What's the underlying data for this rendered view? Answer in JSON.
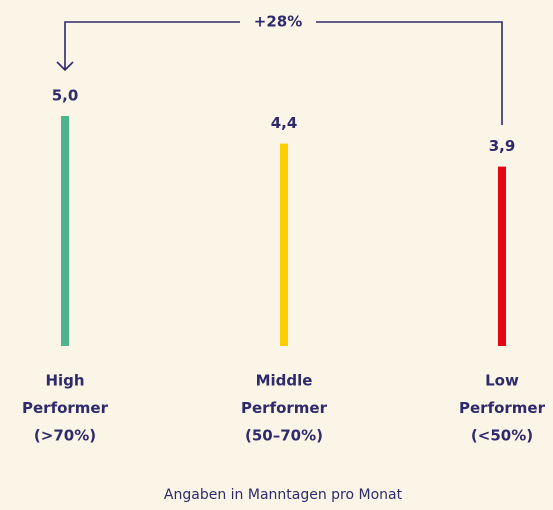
{
  "chart_data": {
    "type": "bar",
    "categories": [
      [
        "High",
        "Performer",
        "(>70%)"
      ],
      [
        "Middle",
        "Performer",
        "(50–70%)"
      ],
      [
        "Low",
        "Performer",
        "(<50%)"
      ]
    ],
    "values": [
      5.0,
      4.4,
      3.9
    ],
    "value_labels": [
      "5,0",
      "4,4",
      "3,9"
    ],
    "colors": [
      "#4fb38b",
      "#ffcc00",
      "#e30613"
    ],
    "ylim": [
      0,
      5
    ],
    "annotation": "+28%",
    "x_label": "Angaben in Manntagen pro Monat"
  }
}
